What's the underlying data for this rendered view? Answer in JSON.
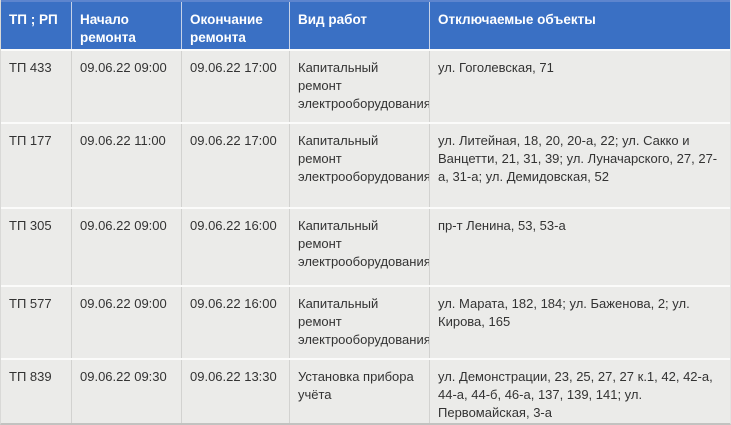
{
  "table": {
    "title_semantic": "График отключений электроснабжения",
    "colors": {
      "header_bg": "#3a70c4",
      "header_text": "#ffffff",
      "row_bg": "#ebebe9",
      "body_text": "#333333",
      "row_separator": "#fbfbfa",
      "cell_divider": "#d2d2d0"
    },
    "header": {
      "col_tp": "ТП ; РП",
      "col_start": "Начало ремонта",
      "col_end": "Окончание ремонта",
      "col_work": "Вид работ",
      "col_objects": "Отключаемые объекты"
    },
    "rows": [
      {
        "tp": "ТП 433",
        "start": "09.06.22 09:00",
        "end": "09.06.22 17:00",
        "work": "Капитальный ремонт электрооборудования",
        "objects": "ул. Гоголевская, 71"
      },
      {
        "tp": "ТП 177",
        "start": "09.06.22 11:00",
        "end": "09.06.22 17:00",
        "work": "Капитальный ремонт электрооборудования",
        "objects": "ул. Литейная, 18, 20, 20-а, 22; ул. Сакко и Ванцетти, 21, 31, 39; ул. Луначарского, 27, 27-а, 31-а; ул. Демидовская, 52"
      },
      {
        "tp": "ТП 305",
        "start": "09.06.22 09:00",
        "end": "09.06.22 16:00",
        "work": "Капитальный ремонт электрооборудования",
        "objects": "пр-т Ленина, 53, 53-а"
      },
      {
        "tp": "ТП 577",
        "start": "09.06.22 09:00",
        "end": "09.06.22 16:00",
        "work": "Капитальный ремонт электрооборудования",
        "objects": "ул. Марата, 182, 184; ул. Баженова, 2; ул. Кирова, 165"
      },
      {
        "tp": "ТП 839",
        "start": "09.06.22 09:30",
        "end": "09.06.22 13:30",
        "work": "Установка прибора учёта",
        "objects": "ул. Демонстрации, 23, 25, 27, 27 к.1, 42, 42-а, 44-а, 44-б, 46-а, 137, 139, 141; ул. Первомайская, 3-а"
      }
    ]
  }
}
